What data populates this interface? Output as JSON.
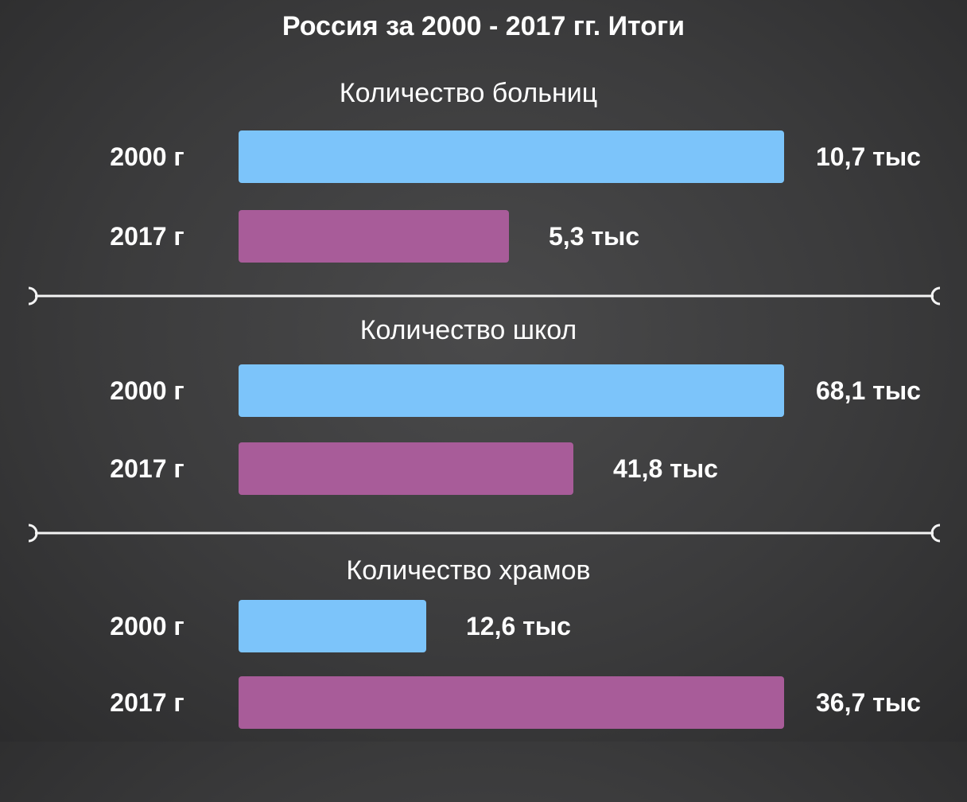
{
  "title": "Россия за 2000 - 2017 гг. Итоги",
  "colors": {
    "year_2000": "#7cc4fa",
    "year_2017": "#a85c99"
  },
  "chart_data": [
    {
      "type": "bar",
      "orientation": "horizontal",
      "title": "Количество больниц",
      "categories": [
        "2000 г",
        "2017 г"
      ],
      "values": [
        10.7,
        5.3
      ],
      "value_labels": [
        "10,7 тыс",
        "5,3 тыс"
      ]
    },
    {
      "type": "bar",
      "orientation": "horizontal",
      "title": "Количество школ",
      "categories": [
        "2000 г",
        "2017 г"
      ],
      "values": [
        68.1,
        41.8
      ],
      "value_labels": [
        "68,1 тыс",
        "41,8 тыс"
      ]
    },
    {
      "type": "bar",
      "orientation": "horizontal",
      "title": "Количество храмов",
      "categories": [
        "2000 г",
        "2017 г"
      ],
      "values": [
        12.6,
        36.7
      ],
      "value_labels": [
        "12,6 тыс",
        "36,7 тыс"
      ]
    }
  ]
}
